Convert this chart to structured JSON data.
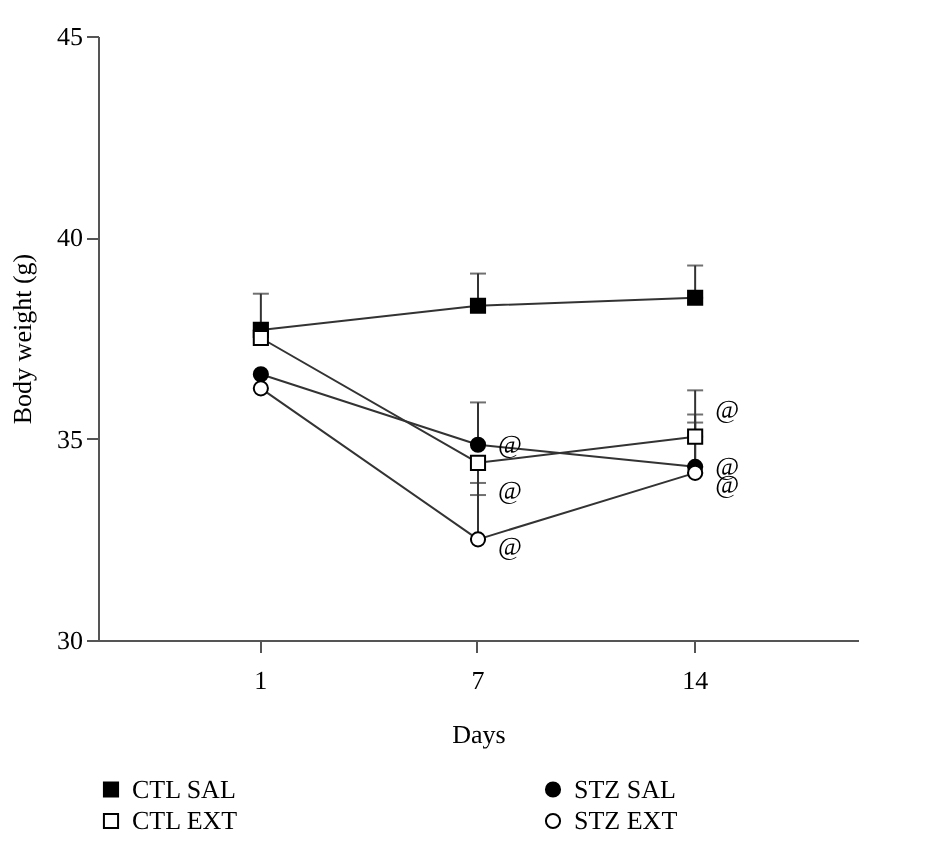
{
  "chart_data": {
    "type": "line",
    "xlabel": "Days",
    "ylabel": "Body weight (g)",
    "categories": [
      "1",
      "7",
      "14"
    ],
    "ylim": [
      30,
      45
    ],
    "yticks": [
      30,
      35,
      40,
      45
    ],
    "grid": false,
    "legend": "bottom",
    "series": [
      {
        "name": "CTL SAL",
        "color": "#000000",
        "marker": "square",
        "values": [
          37.7,
          38.3,
          38.5
        ],
        "errors": [
          [
            37.7,
            38.6
          ],
          [
            38.3,
            39.1
          ],
          [
            38.5,
            39.3
          ]
        ]
      },
      {
        "name": "CTL EXT",
        "color": "#ffffff",
        "marker": "square",
        "values": [
          37.5,
          34.4,
          35.05
        ],
        "errors": [
          null,
          [
            33.6,
            34.4
          ],
          [
            35.05,
            36.2
          ]
        ]
      },
      {
        "name": "STZ SAL",
        "color": "#000000",
        "marker": "circle",
        "values": [
          36.6,
          34.85,
          34.3
        ],
        "errors": [
          null,
          [
            34.85,
            35.9
          ],
          [
            34.3,
            35.6
          ]
        ]
      },
      {
        "name": "STZ EXT",
        "color": "#ffffff",
        "marker": "circle",
        "values": [
          36.25,
          32.5,
          34.15
        ],
        "errors": [
          null,
          [
            32.5,
            33.9
          ],
          [
            34.15,
            35.4
          ]
        ]
      }
    ],
    "annotations": [
      {
        "text": "@",
        "x": "7",
        "y": 34.85
      },
      {
        "text": "@",
        "x": "7",
        "y": 33.7
      },
      {
        "text": "@",
        "x": "7",
        "y": 32.3
      },
      {
        "text": "@",
        "x": "14",
        "y": 35.7
      },
      {
        "text": "@",
        "x": "14",
        "y": 34.3
      },
      {
        "text": "@",
        "x": "14",
        "y": 33.85
      }
    ]
  }
}
